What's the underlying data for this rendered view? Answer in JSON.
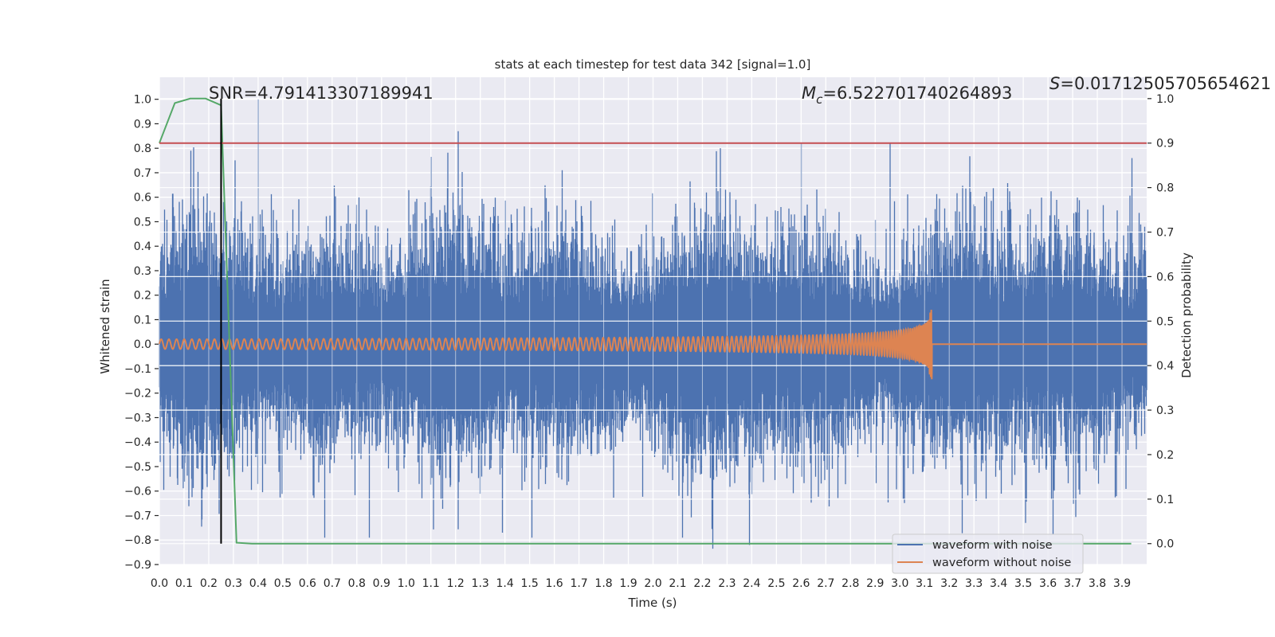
{
  "chart_data": {
    "type": "line",
    "title": "stats at each timestep for test data 342 [signal=1.0]",
    "xlabel": "Time (s)",
    "ylabel_left": "Whitened strain",
    "ylabel_right": "Detection probability",
    "xlim": [
      0,
      4.0
    ],
    "ylim_left": [
      -0.9,
      1.09
    ],
    "ylim_right": [
      -0.047,
      1.048
    ],
    "grid": true,
    "xticks": [
      "0.0",
      "0.1",
      "0.2",
      "0.3",
      "0.4",
      "0.5",
      "0.6",
      "0.7",
      "0.8",
      "0.9",
      "1.0",
      "1.1",
      "1.2",
      "1.3",
      "1.4",
      "1.5",
      "1.6",
      "1.7",
      "1.8",
      "1.9",
      "2.0",
      "2.1",
      "2.2",
      "2.3",
      "2.4",
      "2.5",
      "2.6",
      "2.7",
      "2.8",
      "2.9",
      "3.0",
      "3.1",
      "3.2",
      "3.3",
      "3.4",
      "3.5",
      "3.6",
      "3.7",
      "3.8",
      "3.9"
    ],
    "yticks_left": [
      "1.0",
      "0.9",
      "0.8",
      "0.7",
      "0.6",
      "0.5",
      "0.4",
      "0.3",
      "0.2",
      "0.1",
      "0.0",
      "−0.1",
      "−0.2",
      "−0.3",
      "−0.4",
      "−0.5",
      "−0.6",
      "−0.7",
      "−0.8",
      "−0.9"
    ],
    "yticks_right": [
      "1.0",
      "0.9",
      "0.8",
      "0.7",
      "0.6",
      "0.5",
      "0.4",
      "0.3",
      "0.2",
      "0.1",
      "0.0"
    ],
    "annotations": {
      "snr": "SNR=4.791413307189941",
      "mc_symbol": "M",
      "mc_sub": "c",
      "mc_value": "=6.522701740264893",
      "s_symbol": "S",
      "s_value": "=0.01712505705654621"
    },
    "series": [
      {
        "name": "waveform with noise",
        "axis": "left",
        "color": "#4C72B0",
        "approx_envelope": 0.3,
        "notable_peaks": [
          {
            "t": 0.4,
            "v": 1.0
          },
          {
            "t": 1.21,
            "v": 0.87
          },
          {
            "t": 2.6,
            "v": 0.82
          },
          {
            "t": 2.96,
            "v": 0.82
          },
          {
            "t": 3.94,
            "v": 0.76
          },
          {
            "t": 0.26,
            "v": 0.58
          },
          {
            "t": 2.39,
            "v": -0.82
          },
          {
            "t": 0.67,
            "v": -0.79
          },
          {
            "t": 0.85,
            "v": -0.79
          },
          {
            "t": 1.51,
            "v": -0.79
          },
          {
            "t": 2.12,
            "v": -0.79
          },
          {
            "t": 1.39,
            "v": -0.77
          },
          {
            "t": 3.51,
            "v": -0.73
          }
        ]
      },
      {
        "name": "waveform without noise",
        "axis": "left",
        "color": "#DD8452",
        "chirp": {
          "start_amplitude": 0.02,
          "start_frequency_hz": 32,
          "merger_time": 3.13,
          "peak_value": 0.14
        }
      },
      {
        "name": "detection probability",
        "axis": "right",
        "color": "#55A868",
        "t_step": 0.0625,
        "values": [
          0.9,
          0.99,
          1.0,
          1.0,
          0.985,
          0.002,
          0,
          0,
          0,
          0,
          0,
          0,
          0,
          0,
          0,
          0,
          0,
          0,
          0,
          0,
          0,
          0,
          0,
          0,
          0,
          0,
          0,
          0,
          0,
          0,
          0,
          0,
          0,
          0,
          0,
          0,
          0,
          0,
          0,
          0,
          0,
          0,
          0,
          0,
          0,
          0,
          0,
          0,
          0,
          0,
          0,
          0,
          0,
          0,
          0,
          0,
          0,
          0,
          0,
          0,
          0,
          0,
          0,
          0
        ]
      }
    ],
    "threshold": {
      "value": 0.9,
      "axis": "right",
      "color": "#C44E52"
    },
    "marker_time": {
      "t": 0.25,
      "color": "#000000"
    },
    "legend": {
      "placement": "lower-right",
      "entries": [
        "waveform with noise",
        "waveform without noise"
      ]
    }
  }
}
